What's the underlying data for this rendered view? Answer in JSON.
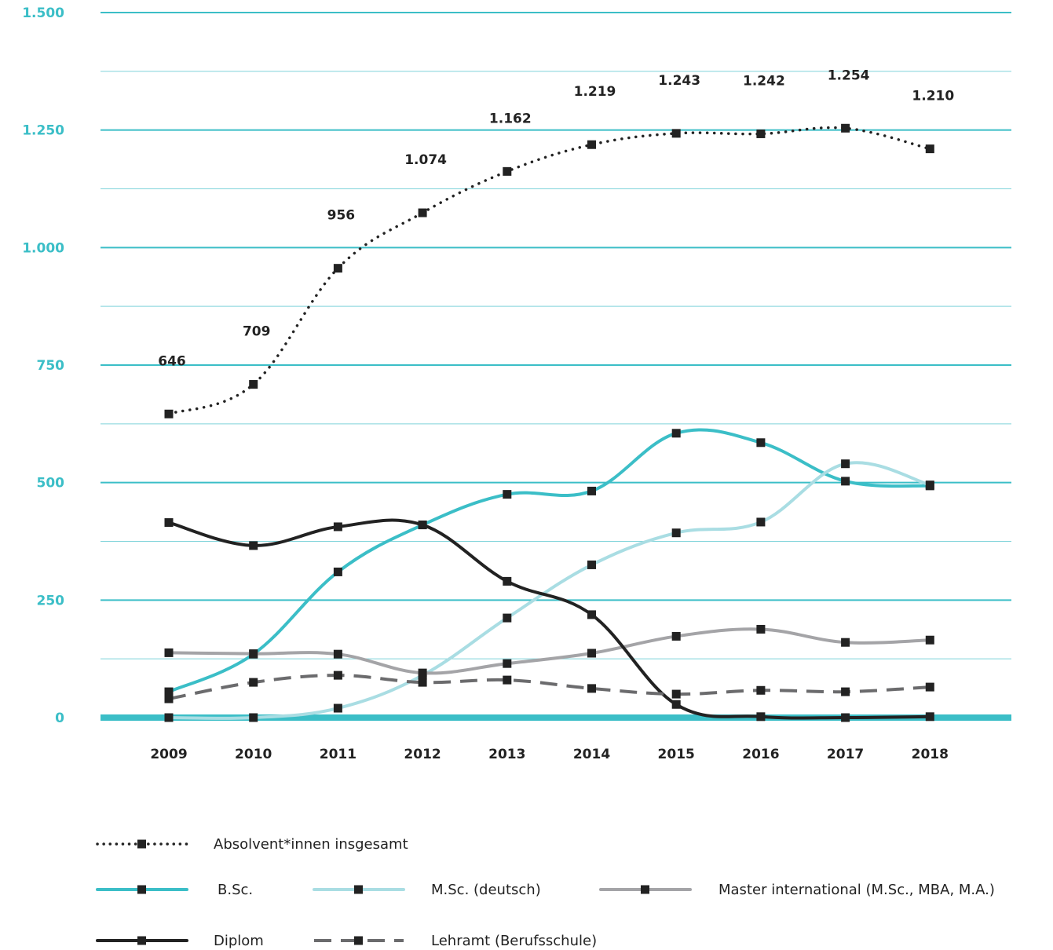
{
  "chart_data": {
    "type": "line",
    "x": [
      "2009",
      "2010",
      "2011",
      "2012",
      "2013",
      "2014",
      "2015",
      "2016",
      "2017",
      "2018"
    ],
    "ylim": [
      0,
      1500
    ],
    "yticks": [
      {
        "value": 0,
        "label": "0"
      },
      {
        "value": 250,
        "label": "250"
      },
      {
        "value": 500,
        "label": "500"
      },
      {
        "value": 750,
        "label": "750"
      },
      {
        "value": 1000,
        "label": "1.000"
      },
      {
        "value": 1250,
        "label": "1.250"
      },
      {
        "value": 1500,
        "label": "1.500"
      }
    ],
    "grid": true,
    "legend_position": "bottom",
    "series": [
      {
        "name": "Absolvent*innen insgesamt",
        "color": "#222222",
        "style": "dotted",
        "values": [
          646,
          709,
          956,
          1074,
          1162,
          1219,
          1243,
          1242,
          1254,
          1210
        ],
        "data_labels": [
          "646",
          "709",
          "956",
          "1.074",
          "1.162",
          "1.219",
          "1.243",
          "1.242",
          "1.254",
          "1.210"
        ]
      },
      {
        "name": "B.Sc.",
        "color": "#3bbec7",
        "style": "solid",
        "values": [
          55,
          135,
          310,
          410,
          475,
          482,
          605,
          585,
          503,
          493
        ]
      },
      {
        "name": "M.Sc. (deutsch)",
        "color": "#a9dde3",
        "style": "solid",
        "values": [
          0,
          0,
          20,
          90,
          212,
          325,
          393,
          416,
          540,
          495
        ]
      },
      {
        "name": "Master international (M.Sc., MBA, M.A.)",
        "color": "#a4a4a7",
        "style": "solid",
        "values": [
          138,
          136,
          135,
          95,
          115,
          137,
          173,
          188,
          160,
          165
        ]
      },
      {
        "name": "Diplom",
        "color": "#222222",
        "style": "solid",
        "values": [
          415,
          366,
          406,
          410,
          290,
          219,
          28,
          2,
          0,
          2
        ]
      },
      {
        "name": "Lehramt (Berufsschule)",
        "color": "#6b6b6d",
        "style": "dashed",
        "values": [
          40,
          75,
          90,
          75,
          80,
          62,
          50,
          58,
          55,
          65
        ]
      }
    ]
  },
  "legend": {
    "rows": [
      [
        "Absolvent*innen insgesamt"
      ],
      [
        "B.Sc.",
        "M.Sc. (deutsch)",
        "Master international (M.Sc., MBA, M.A.)"
      ],
      [
        "Diplom",
        "Lehramt (Berufsschule)"
      ]
    ]
  }
}
